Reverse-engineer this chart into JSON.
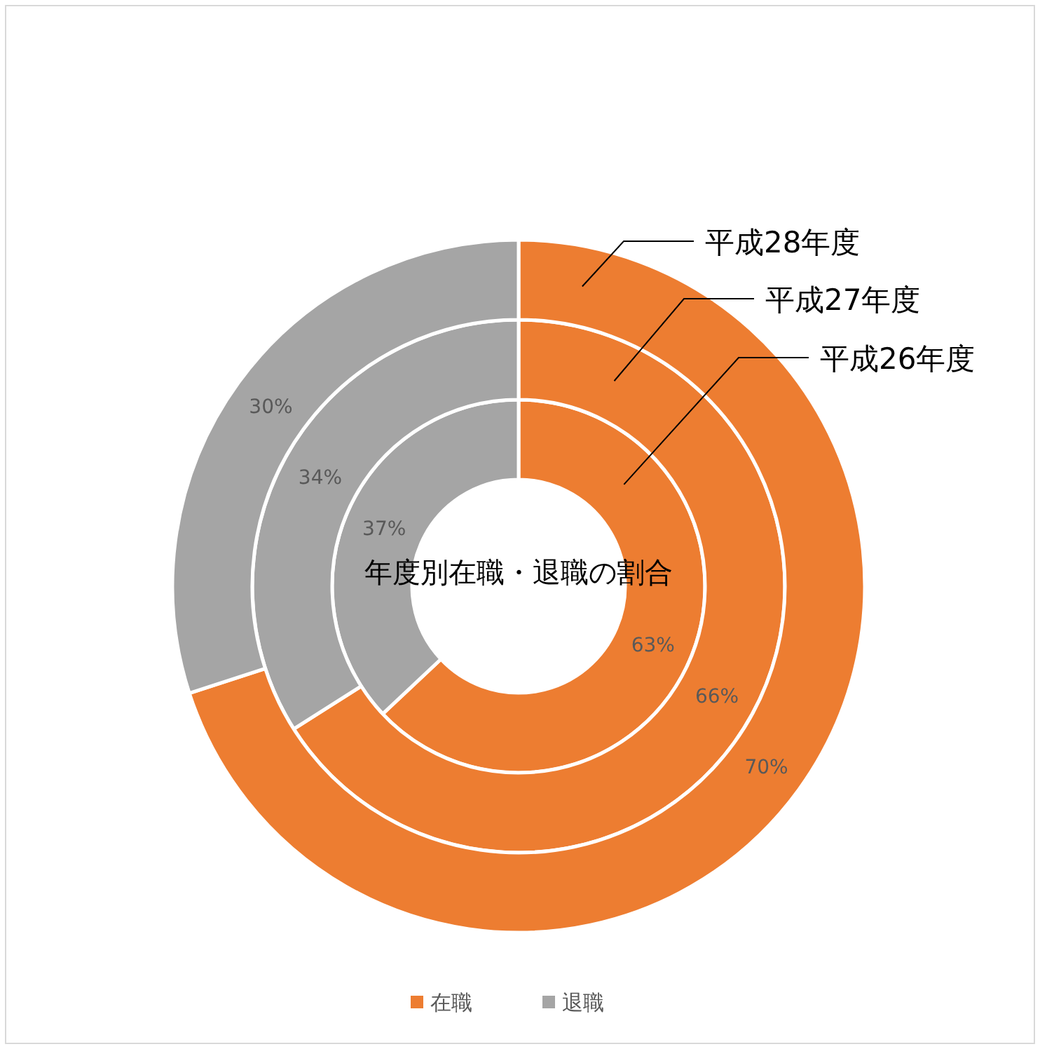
{
  "chart_data": {
    "type": "donut",
    "title": "年度別在職・退職の割合",
    "categories": [
      "在職",
      "退職"
    ],
    "colors": [
      "#ed7d31",
      "#a5a5a5"
    ],
    "legend": "bottom",
    "series": [
      {
        "name": "平成26年度",
        "values": [
          63,
          37
        ],
        "value_labels": [
          "63%",
          "37%"
        ]
      },
      {
        "name": "平成27年度",
        "values": [
          66,
          34
        ],
        "value_labels": [
          "66%",
          "34%"
        ]
      },
      {
        "name": "平成28年度",
        "values": [
          70,
          30
        ],
        "value_labels": [
          "70%",
          "30%"
        ]
      }
    ]
  }
}
